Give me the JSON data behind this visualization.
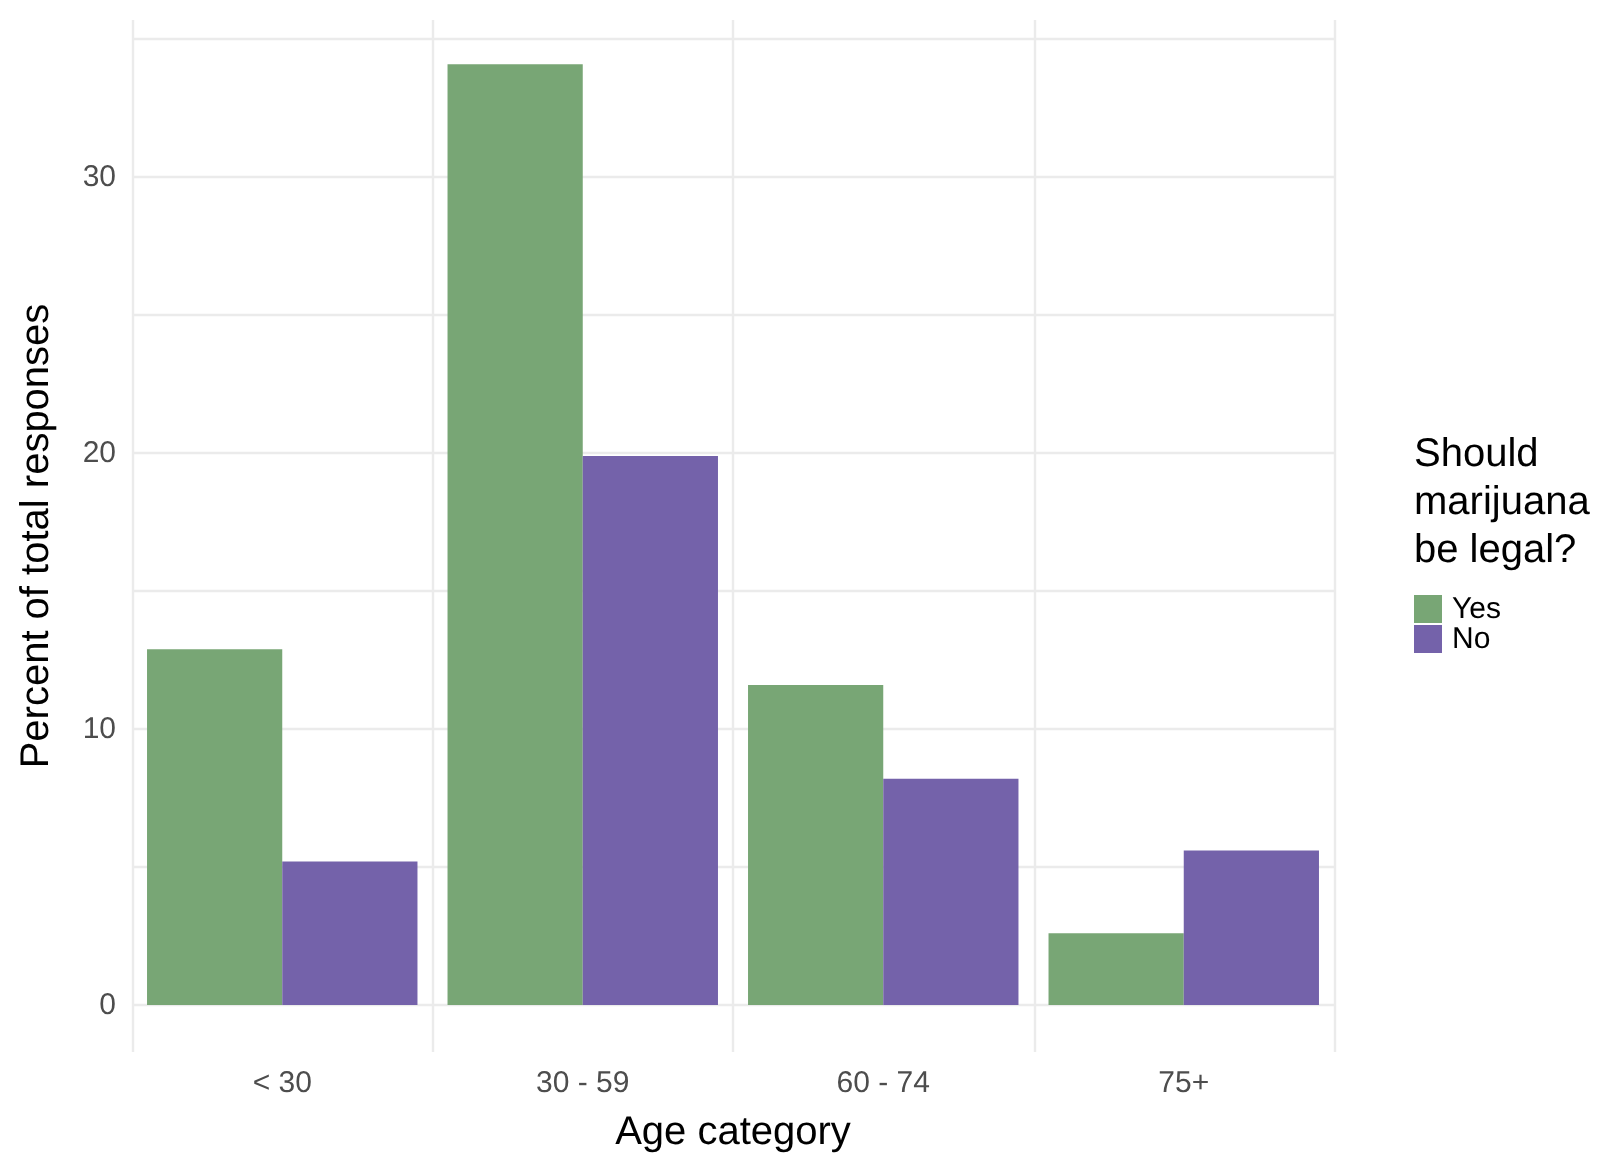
{
  "chart_data": {
    "type": "bar",
    "xlabel": "Age category",
    "ylabel": "Percent of total responses",
    "legend_title": "Should marijuana be legal?",
    "categories": [
      "< 30",
      "30 - 59",
      "60 - 74",
      "75+"
    ],
    "series": [
      {
        "name": "Yes",
        "color": "#78a675",
        "values": [
          12.9,
          34.1,
          11.6,
          2.6
        ]
      },
      {
        "name": "No",
        "color": "#7462aa",
        "values": [
          5.2,
          19.9,
          8.2,
          5.6
        ]
      }
    ],
    "ylim": [
      -1.7,
      35.7
    ],
    "yticks": [
      0,
      {
        "value": 5,
        "label": null
      },
      10,
      {
        "value": 15,
        "label": null
      },
      20,
      {
        "value": 25,
        "label": null
      },
      30,
      {
        "value": 35,
        "label": null
      }
    ],
    "grid": true,
    "legend": "right"
  }
}
